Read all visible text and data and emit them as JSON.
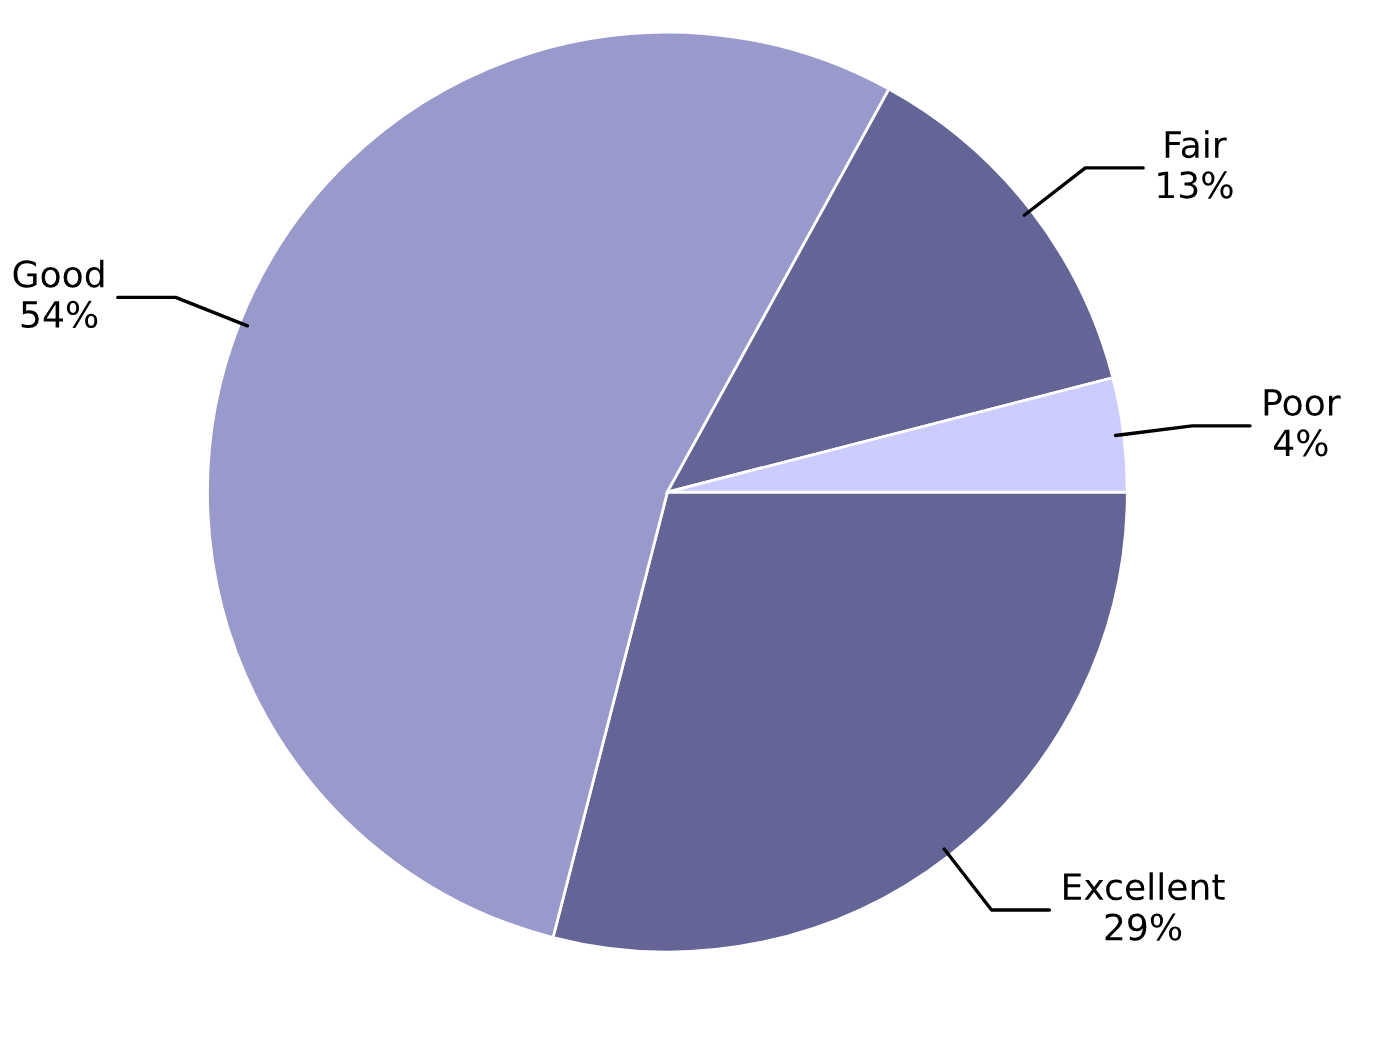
{
  "chart_data": {
    "type": "pie",
    "categories": [
      "Excellent",
      "Good",
      "Fair",
      "Poor"
    ],
    "values": [
      29,
      54,
      13,
      4
    ],
    "value_labels": [
      "29%",
      "54%",
      "13%",
      "4%"
    ],
    "colors": [
      "#646496",
      "#9999cc",
      "#646496",
      "#ccccff"
    ],
    "legend": false
  }
}
